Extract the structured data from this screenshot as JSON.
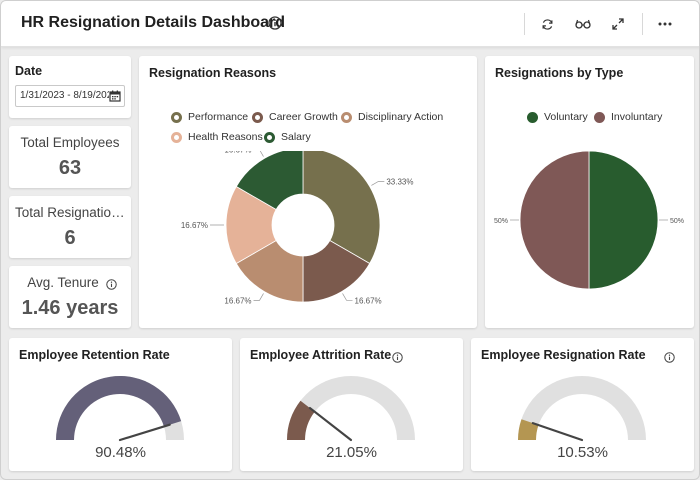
{
  "header": {
    "title": "HR Resignation Details Dashboard"
  },
  "filters": {
    "date_label": "Date",
    "date_value": "1/31/2023 - 8/19/2023"
  },
  "kpis": [
    {
      "label": "Total Employees",
      "value": "63"
    },
    {
      "label": "Total Resignations",
      "value": "6"
    },
    {
      "label": "Avg. Tenure",
      "value": "1.46 years"
    }
  ],
  "reasons": {
    "title": "Resignation Reasons",
    "legend": [
      "Performance",
      "Career Growth",
      "Disciplinary Action",
      "Health Reasons",
      "Salary"
    ]
  },
  "by_type": {
    "title": "Resignations by Type",
    "legend": [
      "Voluntary",
      "Involuntary"
    ]
  },
  "gauges": [
    {
      "title": "Employee Retention Rate",
      "value": 90.48,
      "label": "90.48%"
    },
    {
      "title": "Employee Attrition Rate",
      "value": 21.05,
      "label": "21.05%"
    },
    {
      "title": "Employee Resignation Rate",
      "value": 10.53,
      "label": "10.53%"
    }
  ],
  "colors": {
    "performance": "#76704d",
    "career_growth": "#7b5a4d",
    "disciplinary": "#b98d70",
    "health": "#e5b298",
    "salary": "#2c5a33",
    "voluntary": "#285c2e",
    "involuntary": "#7f5856",
    "retention": "#646079",
    "attrition": "#7b5a4d",
    "resignation": "#b49652",
    "gauge_track": "#e0e0e0"
  },
  "chart_data": [
    {
      "type": "pie",
      "title": "Resignation Reasons",
      "categories": [
        "Performance",
        "Career Growth",
        "Disciplinary Action",
        "Health Reasons",
        "Salary"
      ],
      "values": [
        33.33,
        16.67,
        16.67,
        16.67,
        16.67
      ],
      "labels": [
        "33.33%",
        "16.67%",
        "16.67%",
        "16.67%",
        "16.67%"
      ]
    },
    {
      "type": "pie",
      "title": "Resignations by Type",
      "categories": [
        "Voluntary",
        "Involuntary"
      ],
      "values": [
        50,
        50
      ],
      "labels": [
        "50%",
        "50%"
      ]
    }
  ]
}
